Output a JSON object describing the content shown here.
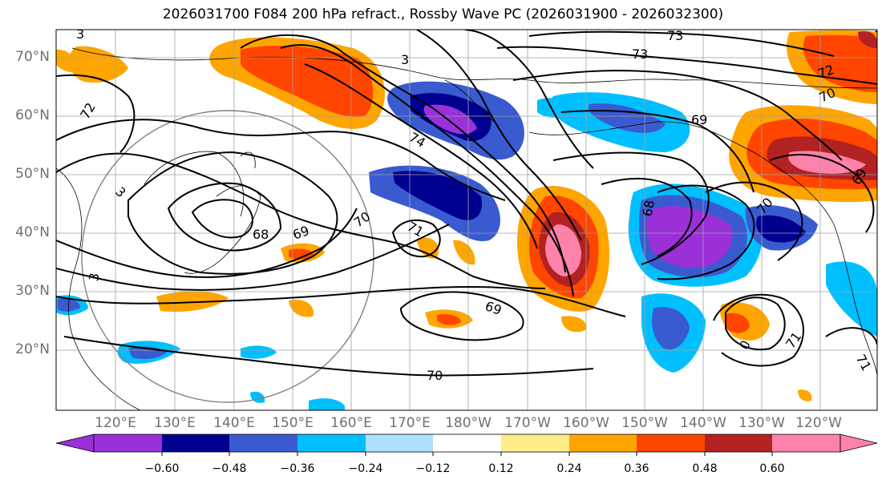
{
  "title": "2026031700 F084 200 hPa refract., Rossby Wave PC (2026031900 - 2026032300)",
  "axes": {
    "lat_labels": [
      "70°N",
      "60°N",
      "50°N",
      "40°N",
      "30°N",
      "20°N"
    ],
    "lon_labels": [
      "120°E",
      "130°E",
      "140°E",
      "150°E",
      "160°E",
      "170°E",
      "180°W",
      "170°W",
      "160°W",
      "150°W",
      "140°W",
      "130°W",
      "120°W"
    ]
  },
  "colorbar": {
    "ticks": [
      "−0.60",
      "−0.48",
      "−0.36",
      "−0.24",
      "−0.12",
      "0.12",
      "0.24",
      "0.36",
      "0.48",
      "0.60"
    ],
    "colors": [
      "#9b30d9",
      "#000090",
      "#3a5ad0",
      "#00bfff",
      "#b0e0ff",
      "#ffffff",
      "#ffec8b",
      "#ffa500",
      "#ff4500",
      "#b22222",
      "#ff82ab"
    ]
  },
  "contour_labels": [
    "72",
    "73",
    "72",
    "70",
    "69",
    "73",
    "74",
    "69",
    "3",
    "68",
    "69",
    "70",
    "71",
    "68",
    "70",
    "71",
    "69",
    "70",
    "71",
    "3",
    "3",
    "71",
    "3",
    "0"
  ],
  "colors": {
    "contour": "#000000",
    "grid": "#a0a0a0",
    "ocean": "#ffffff",
    "tick_label": "#707070"
  }
}
